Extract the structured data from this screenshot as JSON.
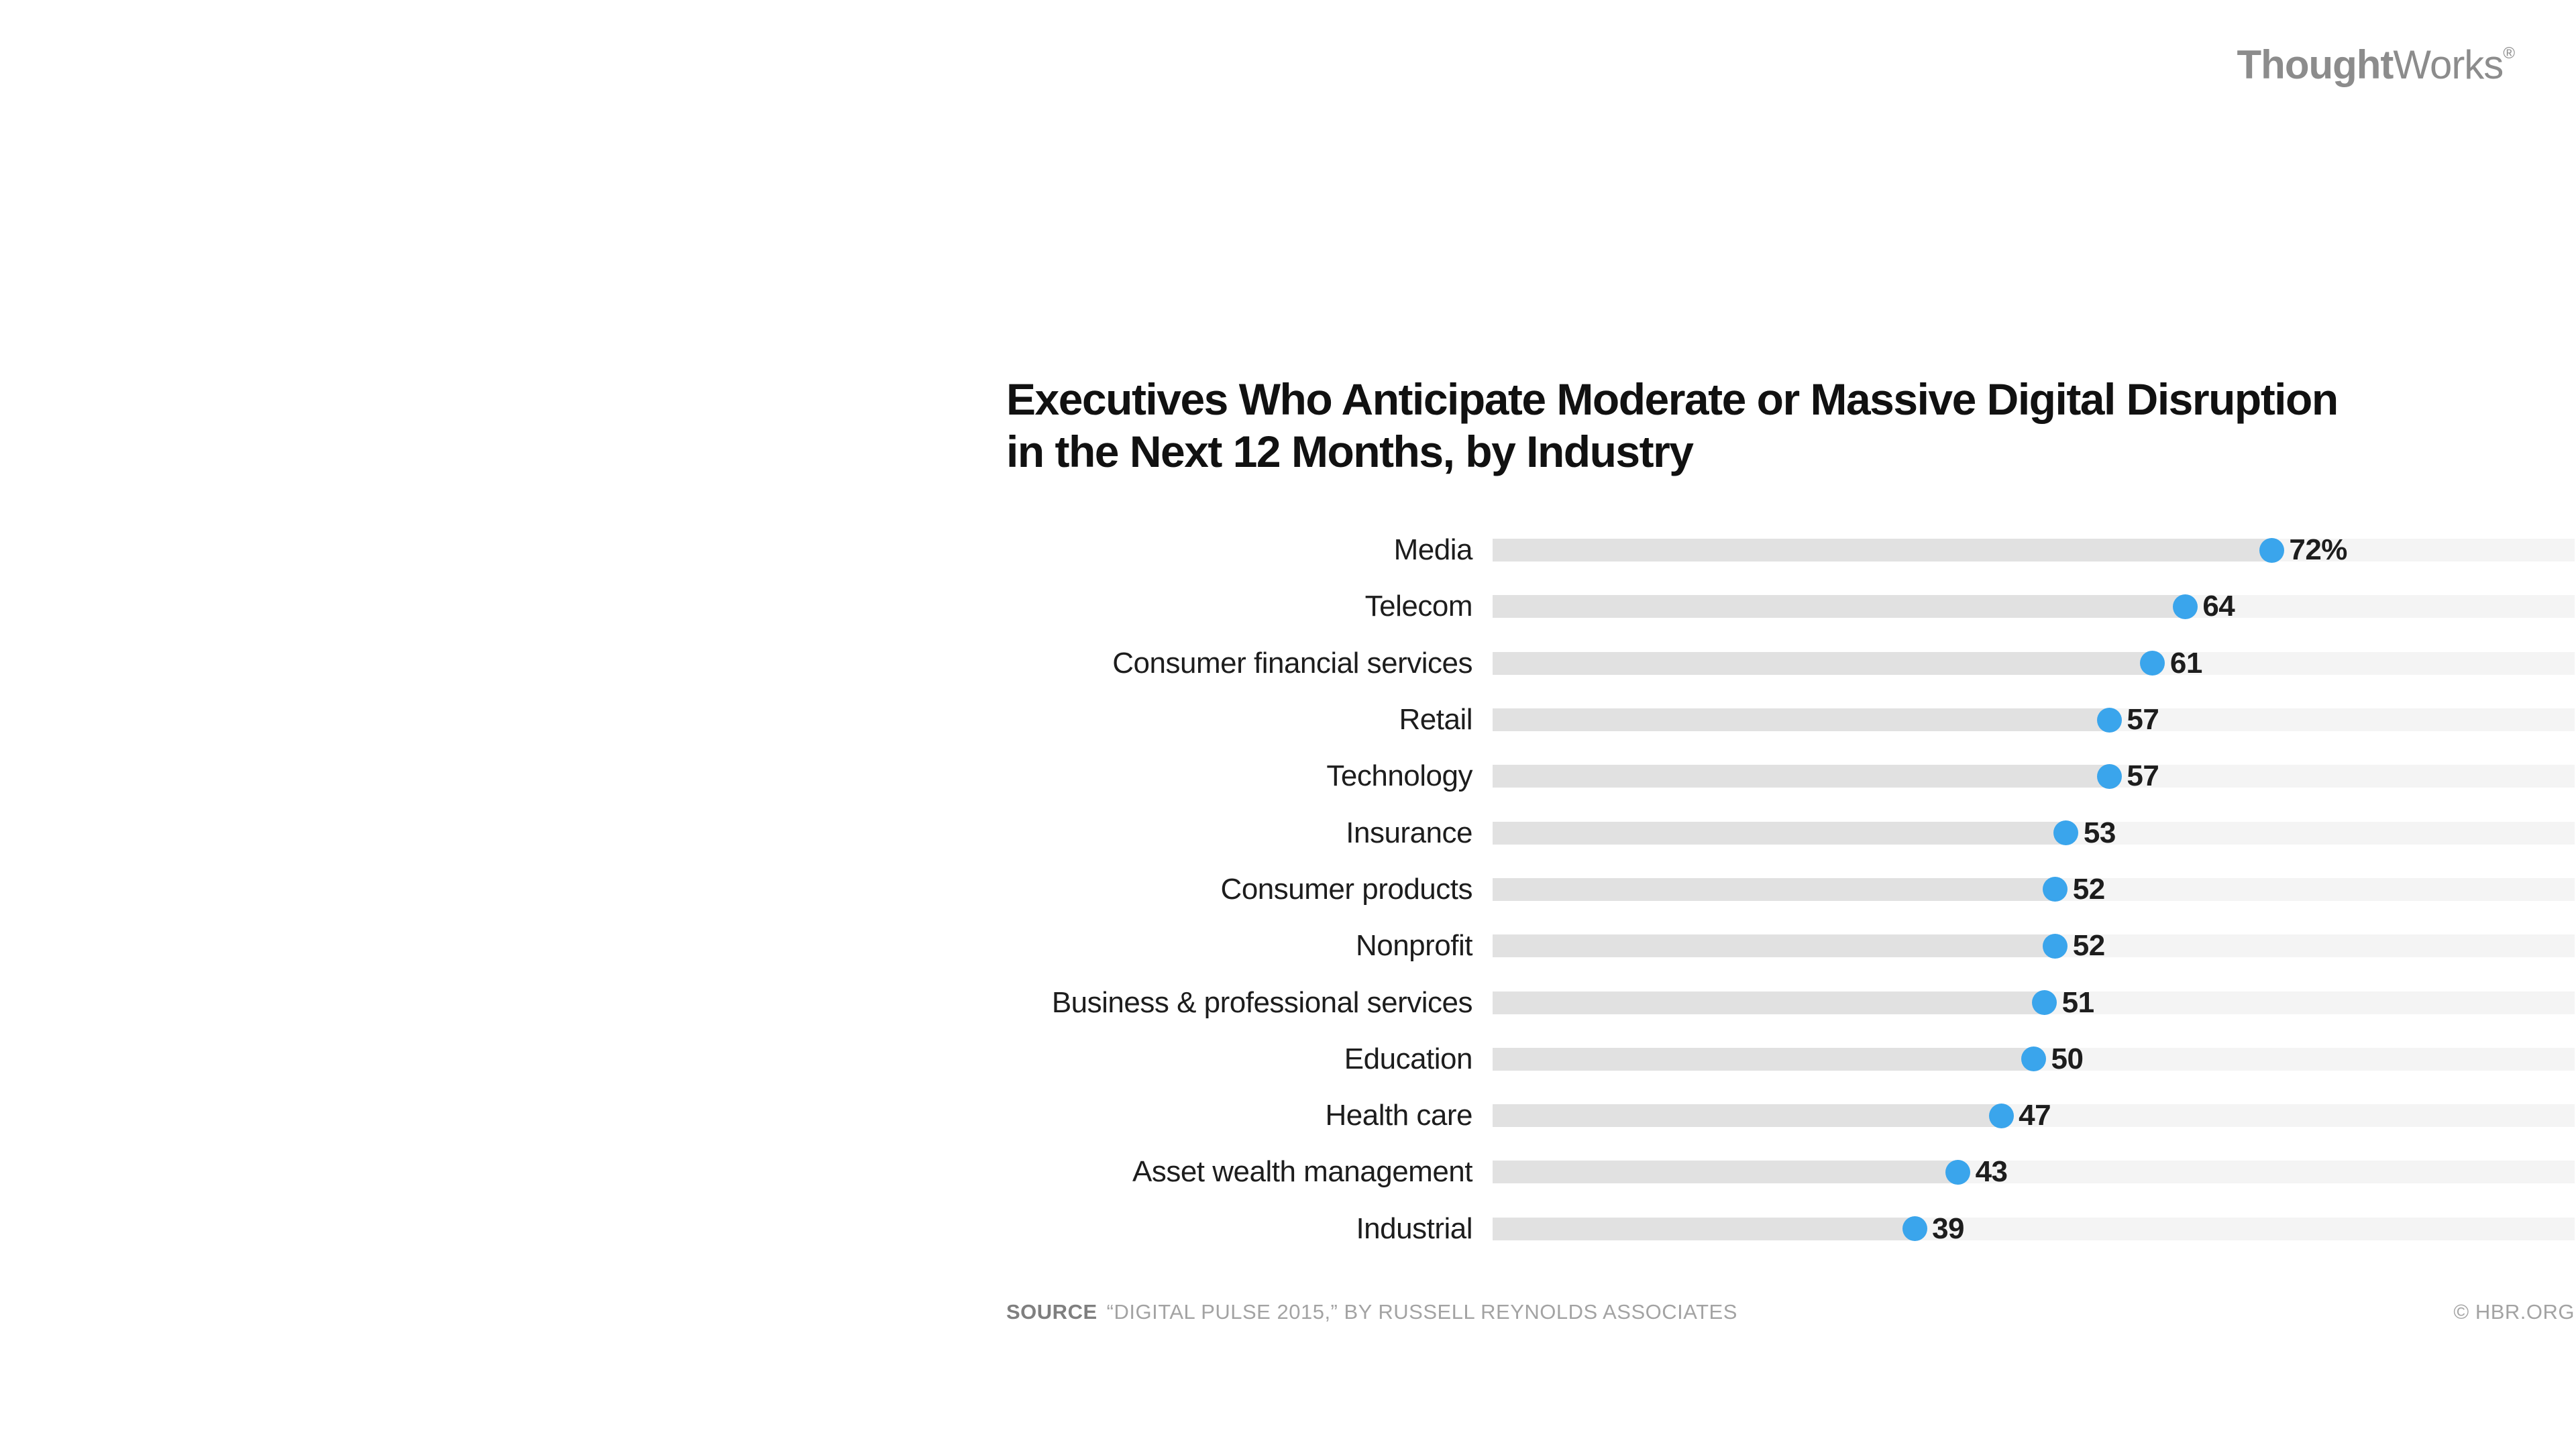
{
  "logo": {
    "bold_part": "Thought",
    "regular_part": "Works",
    "registered_mark": "®"
  },
  "title_lines": [
    "Executives Who Anticipate Moderate or Massive Digital Disruption",
    "in the Next 12 Months, by Industry"
  ],
  "footer": {
    "source_label": "SOURCE",
    "source_text": "“DIGITAL PULSE 2015,” BY RUSSELL REYNOLDS ASSOCIATES",
    "copyright": "© HBR.ORG"
  },
  "colors": {
    "dot_blue": "#3aa5ec",
    "bar_fill": "#e1e1e1",
    "bar_track": "#f4f4f4",
    "title_text": "#111111",
    "label_text": "#1d1d1d",
    "logo_gray": "#8c8c8c",
    "footer_gray": "#a3a3a3",
    "source_label_gray": "#7f7f7f"
  },
  "chart_data": {
    "type": "bar",
    "orientation": "horizontal",
    "title": "Executives Who Anticipate Moderate or Massive Digital Disruption in the Next 12 Months, by Industry",
    "categories": [
      "Media",
      "Telecom",
      "Consumer financial services",
      "Retail",
      "Technology",
      "Insurance",
      "Consumer products",
      "Nonprofit",
      "Business & professional services",
      "Education",
      "Health care",
      "Asset wealth management",
      "Industrial"
    ],
    "values": [
      72,
      64,
      61,
      57,
      57,
      53,
      52,
      52,
      51,
      50,
      47,
      43,
      39
    ],
    "value_labels": [
      "72%",
      "64",
      "61",
      "57",
      "57",
      "53",
      "52",
      "52",
      "51",
      "50",
      "47",
      "43",
      "39"
    ],
    "unit": "percent of executives",
    "xlim": [
      0,
      100
    ],
    "grid": false,
    "legend": false,
    "marker": "dot",
    "source": "SOURCE “DIGITAL PULSE 2015,” BY RUSSELL REYNOLDS ASSOCIATES",
    "credit": "© HBR.ORG"
  }
}
